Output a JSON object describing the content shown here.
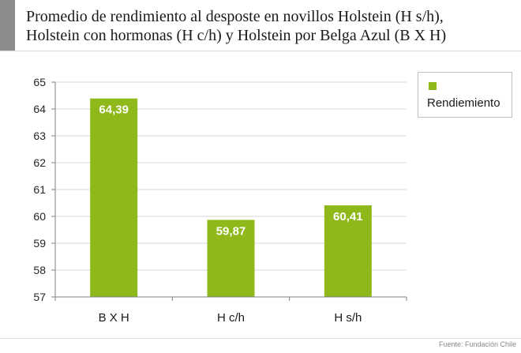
{
  "title": "Promedio de rendimiento al desposte en novillos Holstein (H s/h),\nHolstein con hormonas (H c/h) y Holstein por Belga Azul (B X H)",
  "source": "Fuente: Fundación Chile",
  "colors": {
    "bar": "#8fb81b",
    "axis": "#808080",
    "grid": "#d9d9d9",
    "header_bar": "#8c8c8c"
  },
  "chart_data": {
    "type": "bar",
    "categories": [
      "B X H",
      "H c/h",
      "H s/h"
    ],
    "series": [
      {
        "name": "Rendiemiento",
        "values": [
          64.39,
          59.87,
          60.41
        ]
      }
    ],
    "data_labels": [
      "64,39",
      "59,87",
      "60,41"
    ],
    "yticks": [
      "57",
      "58",
      "59",
      "60",
      "61",
      "62",
      "63",
      "64",
      "65"
    ],
    "ylim": [
      57,
      65
    ],
    "xlabel": "",
    "ylabel": "",
    "grid": true,
    "legend": {
      "position": "top-right",
      "entries": [
        "Rendiemiento"
      ]
    }
  }
}
